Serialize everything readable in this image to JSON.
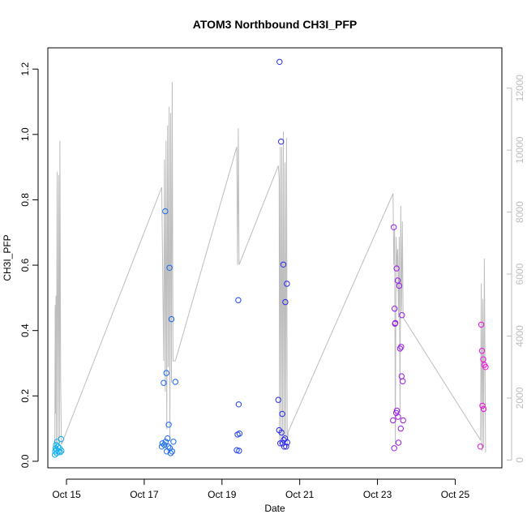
{
  "chart_data": {
    "type": "scatter",
    "title": "ATOM3 Northbound CH3I_PFP",
    "xlabel": "Date",
    "ylabel": "CH3I_PFP",
    "x_ticks": [
      "Oct 15",
      "Oct 17",
      "Oct 19",
      "Oct 21",
      "Oct 23",
      "Oct 25"
    ],
    "x_tick_days": [
      15,
      17,
      19,
      21,
      23,
      25
    ],
    "xlim": [
      14.52,
      26.2
    ],
    "ylim": [
      -0.02,
      1.265
    ],
    "y_ticks": [
      0.0,
      0.2,
      0.4,
      0.6,
      0.8,
      1.0,
      1.2
    ],
    "y2_ticks": [
      0,
      2000,
      4000,
      6000,
      8000,
      10000,
      12000
    ],
    "y2lim": [
      -250,
      13300
    ],
    "y2_color": "#bdbdbd",
    "colors": {
      "start": "#12b0ec",
      "middle": "#1c2bf0",
      "end": "#ee10de"
    },
    "points": [
      [
        14.7,
        0.02
      ],
      [
        14.71,
        0.03
      ],
      [
        14.72,
        0.04
      ],
      [
        14.73,
        0.05
      ],
      [
        14.74,
        0.035
      ],
      [
        14.75,
        0.025
      ],
      [
        14.76,
        0.06
      ],
      [
        14.78,
        0.045
      ],
      [
        14.8,
        0.03
      ],
      [
        14.82,
        0.04
      ],
      [
        14.84,
        0.028
      ],
      [
        14.86,
        0.068
      ],
      [
        14.87,
        0.032
      ],
      [
        17.45,
        0.045
      ],
      [
        17.47,
        0.055
      ],
      [
        17.5,
        0.24
      ],
      [
        17.52,
        0.05
      ],
      [
        17.54,
        0.765
      ],
      [
        17.55,
        0.06
      ],
      [
        17.57,
        0.27
      ],
      [
        17.58,
        0.03
      ],
      [
        17.6,
        0.07
      ],
      [
        17.62,
        0.045
      ],
      [
        17.63,
        0.112
      ],
      [
        17.65,
        0.592
      ],
      [
        17.66,
        0.04
      ],
      [
        17.68,
        0.025
      ],
      [
        17.7,
        0.435
      ],
      [
        17.72,
        0.03
      ],
      [
        17.75,
        0.06
      ],
      [
        17.8,
        0.243
      ],
      [
        19.38,
        0.034
      ],
      [
        19.4,
        0.082
      ],
      [
        19.42,
        0.493
      ],
      [
        19.43,
        0.174
      ],
      [
        19.44,
        0.032
      ],
      [
        19.45,
        0.085
      ],
      [
        20.45,
        0.188
      ],
      [
        20.47,
        0.095
      ],
      [
        20.48,
        1.222
      ],
      [
        20.5,
        0.055
      ],
      [
        20.52,
        0.978
      ],
      [
        20.53,
        0.088
      ],
      [
        20.55,
        0.145
      ],
      [
        20.56,
        0.055
      ],
      [
        20.58,
        0.602
      ],
      [
        20.59,
        0.065
      ],
      [
        20.6,
        0.045
      ],
      [
        20.62,
        0.07
      ],
      [
        20.63,
        0.487
      ],
      [
        20.65,
        0.045
      ],
      [
        20.67,
        0.543
      ],
      [
        20.68,
        0.058
      ],
      [
        23.4,
        0.125
      ],
      [
        23.42,
        0.716
      ],
      [
        23.43,
        0.04
      ],
      [
        23.44,
        0.467
      ],
      [
        23.45,
        0.421
      ],
      [
        23.46,
        0.423
      ],
      [
        23.48,
        0.148
      ],
      [
        23.49,
        0.59
      ],
      [
        23.5,
        0.155
      ],
      [
        23.52,
        0.553
      ],
      [
        23.53,
        0.136
      ],
      [
        23.54,
        0.057
      ],
      [
        23.56,
        0.537
      ],
      [
        23.58,
        0.345
      ],
      [
        23.6,
        0.1
      ],
      [
        23.61,
        0.35
      ],
      [
        23.62,
        0.26
      ],
      [
        23.63,
        0.447
      ],
      [
        23.65,
        0.245
      ],
      [
        23.66,
        0.125
      ],
      [
        25.65,
        0.045
      ],
      [
        25.67,
        0.418
      ],
      [
        25.69,
        0.338
      ],
      [
        25.7,
        0.17
      ],
      [
        25.72,
        0.312
      ],
      [
        25.73,
        0.16
      ],
      [
        25.75,
        0.295
      ],
      [
        25.78,
        0.288
      ]
    ],
    "altitude_line": [
      [
        14.7,
        400
      ],
      [
        14.71,
        5000
      ],
      [
        14.72,
        1500
      ],
      [
        14.73,
        5300
      ],
      [
        14.74,
        300
      ],
      [
        14.76,
        9300
      ],
      [
        14.78,
        500
      ],
      [
        14.8,
        9200
      ],
      [
        14.82,
        700
      ],
      [
        14.83,
        10300
      ],
      [
        14.85,
        2500
      ],
      [
        14.87,
        500
      ],
      [
        17.45,
        8800
      ],
      [
        17.5,
        3200
      ],
      [
        17.52,
        9700
      ],
      [
        17.54,
        2200
      ],
      [
        17.56,
        10300
      ],
      [
        17.58,
        1000
      ],
      [
        17.6,
        10800
      ],
      [
        17.62,
        3000
      ],
      [
        17.64,
        11400
      ],
      [
        17.66,
        600
      ],
      [
        17.68,
        11200
      ],
      [
        17.7,
        2500
      ],
      [
        17.72,
        12200
      ],
      [
        17.74,
        3200
      ],
      [
        17.8,
        3200
      ],
      [
        19.38,
        10100
      ],
      [
        19.4,
        6300
      ],
      [
        19.42,
        10700
      ],
      [
        19.44,
        6300
      ],
      [
        20.45,
        9500
      ],
      [
        20.47,
        9100
      ],
      [
        20.48,
        500
      ],
      [
        20.5,
        10100
      ],
      [
        20.52,
        500
      ],
      [
        20.54,
        10100
      ],
      [
        20.56,
        600
      ],
      [
        20.58,
        10600
      ],
      [
        20.6,
        500
      ],
      [
        20.62,
        9600
      ],
      [
        20.64,
        600
      ],
      [
        20.66,
        10400
      ],
      [
        20.68,
        400
      ],
      [
        20.7,
        900
      ],
      [
        23.4,
        8600
      ],
      [
        23.42,
        6300
      ],
      [
        23.44,
        7500
      ],
      [
        23.46,
        500
      ],
      [
        23.48,
        7200
      ],
      [
        23.5,
        6200
      ],
      [
        23.52,
        6800
      ],
      [
        23.54,
        4600
      ],
      [
        23.56,
        7200
      ],
      [
        23.58,
        1500
      ],
      [
        23.6,
        8200
      ],
      [
        23.62,
        4800
      ],
      [
        23.64,
        7700
      ],
      [
        23.66,
        4600
      ],
      [
        25.65,
        650
      ],
      [
        25.67,
        5700
      ],
      [
        25.69,
        300
      ],
      [
        25.71,
        5200
      ],
      [
        25.73,
        400
      ],
      [
        25.75,
        6500
      ],
      [
        25.78,
        250
      ]
    ]
  }
}
